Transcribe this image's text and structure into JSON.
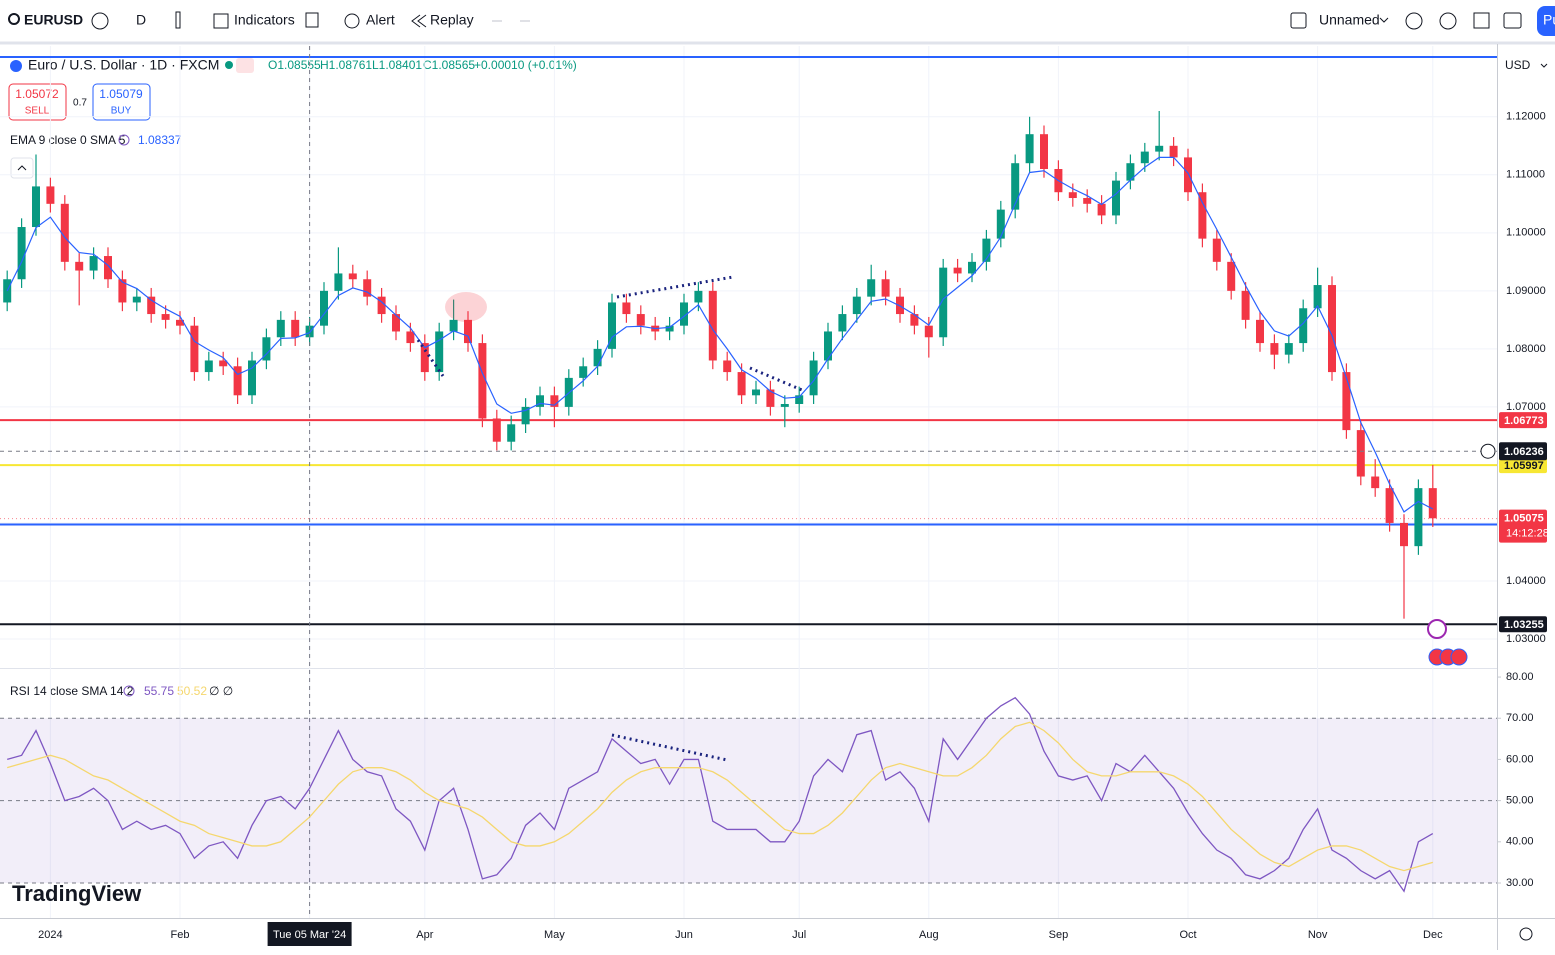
{
  "toolbar": {
    "symbol": "EURUSD",
    "interval": "D",
    "indicators": "Indicators",
    "alert": "Alert",
    "replay": "Replay",
    "layout": "Unnamed",
    "publish": "Pu"
  },
  "trading": {
    "sell_price": "1.05072",
    "sell": "SELL",
    "spread": "0.7",
    "buy_price": "1.05079",
    "buy": "BUY"
  },
  "logo": "TradingView",
  "chart_data": [
    {
      "type": "candlestick",
      "title": "Euro / U.S. Dollar · 1D · FXCM",
      "ohlc_legend": [
        "O1.08555",
        "H1.08761",
        "L1.08401",
        "C1.08565",
        "+0.00010 (+0.01%)"
      ],
      "currency": "USD",
      "categories": [
        null,
        null,
        null,
        "2024",
        null,
        null,
        null,
        null,
        null,
        null,
        null,
        null,
        "Feb",
        null,
        null,
        null,
        null,
        null,
        null,
        null,
        null,
        "Tue 05 Mar '24",
        null,
        null,
        null,
        null,
        null,
        null,
        null,
        "Apr",
        null,
        null,
        null,
        null,
        null,
        null,
        null,
        null,
        "May",
        null,
        null,
        null,
        null,
        null,
        null,
        null,
        null,
        "Jun",
        null,
        null,
        null,
        null,
        null,
        null,
        null,
        "Jul",
        null,
        null,
        null,
        null,
        null,
        null,
        null,
        null,
        "Aug",
        null,
        null,
        null,
        null,
        null,
        null,
        null,
        null,
        "Sep",
        null,
        null,
        null,
        null,
        null,
        null,
        null,
        null,
        "Oct",
        null,
        null,
        null,
        null,
        null,
        null,
        null,
        null,
        "Nov",
        null,
        null,
        null,
        null,
        null,
        null,
        null,
        "Dec"
      ],
      "crosshair_x": "Tue 05 Mar '24",
      "crosshair_y": 1.06236,
      "open": [
        1.088,
        1.092,
        1.101,
        1.108,
        1.105,
        1.095,
        1.0935,
        1.096,
        1.092,
        1.088,
        1.089,
        1.086,
        1.085,
        1.084,
        1.076,
        1.078,
        1.077,
        1.072,
        1.078,
        1.082,
        1.085,
        1.082,
        1.084,
        1.09,
        1.093,
        1.092,
        1.089,
        1.086,
        1.083,
        1.081,
        1.076,
        1.083,
        1.085,
        1.081,
        1.068,
        1.064,
        1.067,
        1.07,
        1.072,
        1.07,
        1.075,
        1.077,
        1.08,
        1.088,
        1.086,
        1.084,
        1.083,
        1.084,
        1.088,
        1.09,
        1.078,
        1.076,
        1.072,
        1.073,
        1.07,
        1.0705,
        1.072,
        1.078,
        1.083,
        1.086,
        1.089,
        1.092,
        1.089,
        1.086,
        1.084,
        1.082,
        1.094,
        1.093,
        1.095,
        1.099,
        1.104,
        1.112,
        1.117,
        1.111,
        1.107,
        1.106,
        1.105,
        1.103,
        1.109,
        1.112,
        1.114,
        1.115,
        1.113,
        1.107,
        1.099,
        1.095,
        1.09,
        1.085,
        1.081,
        1.079,
        1.081,
        1.087,
        1.091,
        1.076,
        1.066,
        1.058,
        1.056,
        1.05,
        1.046,
        1.056
      ],
      "high": [
        1.0935,
        1.1025,
        1.1135,
        1.1095,
        1.1065,
        1.0965,
        1.0975,
        1.0975,
        1.0935,
        1.0905,
        1.0905,
        1.0875,
        1.0865,
        1.0855,
        1.0795,
        1.0795,
        1.0785,
        1.0795,
        1.0835,
        1.0865,
        1.0865,
        1.0855,
        1.0915,
        1.0975,
        1.0945,
        1.0935,
        1.0905,
        1.0875,
        1.0845,
        1.0825,
        1.0845,
        1.0885,
        1.0865,
        1.0825,
        1.0695,
        1.0685,
        1.0715,
        1.0735,
        1.0735,
        1.0765,
        1.0785,
        1.0815,
        1.0895,
        1.0895,
        1.0875,
        1.0855,
        1.0855,
        1.0895,
        1.0915,
        1.0915,
        1.0795,
        1.0775,
        1.0745,
        1.0745,
        1.072,
        1.0735,
        1.0795,
        1.0845,
        1.0875,
        1.0905,
        1.0945,
        1.0935,
        1.0905,
        1.0875,
        1.0855,
        1.0955,
        1.0955,
        1.0965,
        1.1005,
        1.1055,
        1.1135,
        1.12,
        1.1185,
        1.1125,
        1.1085,
        1.1075,
        1.1065,
        1.1105,
        1.1135,
        1.1155,
        1.121,
        1.1165,
        1.1145,
        1.1085,
        1.1005,
        1.0965,
        1.0915,
        1.0865,
        1.0825,
        1.0825,
        1.0885,
        1.094,
        1.0925,
        1.0775,
        1.0675,
        1.061,
        1.0575,
        1.0515,
        1.0575,
        1.06
      ],
      "low": [
        1.0865,
        1.0905,
        1.0995,
        1.1035,
        1.0935,
        1.0875,
        1.092,
        1.0905,
        1.0865,
        1.0865,
        1.0845,
        1.0835,
        1.0825,
        1.0745,
        1.0745,
        1.0755,
        1.0705,
        1.0705,
        1.0765,
        1.0805,
        1.0805,
        1.0805,
        1.0825,
        1.0885,
        1.0905,
        1.0875,
        1.0845,
        1.0815,
        1.0795,
        1.0745,
        1.0745,
        1.0815,
        1.0795,
        1.0665,
        1.0625,
        1.0625,
        1.0655,
        1.0685,
        1.0665,
        1.0685,
        1.0735,
        1.0755,
        1.0785,
        1.0845,
        1.0825,
        1.0815,
        1.0815,
        1.0825,
        1.0865,
        1.0765,
        1.0745,
        1.0705,
        1.0705,
        1.0685,
        1.0665,
        1.069,
        1.0705,
        1.0765,
        1.0815,
        1.0845,
        1.0875,
        1.0875,
        1.0845,
        1.0825,
        1.0785,
        1.0805,
        1.0915,
        1.0915,
        1.0935,
        1.0975,
        1.1025,
        1.1105,
        1.1095,
        1.1055,
        1.1045,
        1.1035,
        1.1015,
        1.1015,
        1.1075,
        1.1105,
        1.1125,
        1.1115,
        1.1055,
        1.0975,
        1.0935,
        1.0885,
        1.0835,
        1.0795,
        1.0765,
        1.0775,
        1.0795,
        1.0855,
        1.0745,
        1.0645,
        1.0565,
        1.0545,
        1.0485,
        1.0335,
        1.0445,
        1.0493
      ],
      "close": [
        1.092,
        1.101,
        1.108,
        1.105,
        1.095,
        1.0935,
        1.096,
        1.092,
        1.088,
        1.089,
        1.086,
        1.085,
        1.084,
        1.076,
        1.078,
        1.077,
        1.072,
        1.078,
        1.082,
        1.085,
        1.082,
        1.084,
        1.09,
        1.093,
        1.092,
        1.089,
        1.086,
        1.083,
        1.081,
        1.076,
        1.083,
        1.085,
        1.081,
        1.068,
        1.064,
        1.067,
        1.07,
        1.072,
        1.07,
        1.075,
        1.077,
        1.08,
        1.088,
        1.086,
        1.084,
        1.083,
        1.084,
        1.088,
        1.09,
        1.078,
        1.076,
        1.072,
        1.073,
        1.07,
        1.0705,
        1.072,
        1.078,
        1.083,
        1.086,
        1.089,
        1.092,
        1.089,
        1.086,
        1.084,
        1.082,
        1.094,
        1.093,
        1.095,
        1.099,
        1.104,
        1.112,
        1.117,
        1.111,
        1.107,
        1.106,
        1.105,
        1.103,
        1.109,
        1.112,
        1.114,
        1.115,
        1.113,
        1.107,
        1.099,
        1.095,
        1.09,
        1.085,
        1.081,
        1.079,
        1.081,
        1.087,
        1.091,
        1.076,
        1.066,
        1.058,
        1.056,
        1.05,
        1.046,
        1.056,
        1.0508
      ],
      "up_color": "#089981",
      "down_color": "#f23645",
      "series": [
        {
          "name": "EMA 9 close 0 SMA 5",
          "legend_value": 1.08337,
          "color": "#2962ff",
          "values": [
            1.09,
            1.095,
            1.1009,
            1.1027,
            1.0992,
            1.0966,
            1.0963,
            1.0944,
            1.0915,
            1.0904,
            1.0884,
            1.0869,
            1.0856,
            1.0813,
            1.0798,
            1.0785,
            1.0756,
            1.0767,
            1.0791,
            1.0818,
            1.0819,
            1.0828,
            1.086,
            1.0892,
            1.0905,
            1.0898,
            1.0881,
            1.0858,
            1.0836,
            1.0802,
            1.0815,
            1.0831,
            1.0822,
            1.0758,
            1.0705,
            1.0689,
            1.0694,
            1.0706,
            1.0703,
            1.0724,
            1.0745,
            1.077,
            1.082,
            1.0838,
            1.0839,
            1.0835,
            1.0837,
            1.0856,
            1.0876,
            1.0833,
            1.08,
            1.0764,
            1.0749,
            1.0727,
            1.0715,
            1.0717,
            1.0745,
            1.0783,
            1.0818,
            1.085,
            1.0882,
            1.0886,
            1.0874,
            1.0859,
            1.0841,
            1.0886,
            1.0906,
            1.0926,
            1.0955,
            1.0993,
            1.105,
            1.1104,
            1.1107,
            1.109,
            1.1076,
            1.1064,
            1.1049,
            1.1067,
            1.1091,
            1.1113,
            1.113,
            1.113,
            1.1103,
            1.1052,
            1.1006,
            1.0958,
            1.0909,
            1.0864,
            1.0831,
            1.0822,
            1.0844,
            1.0874,
            1.0823,
            1.075,
            1.0673,
            1.0622,
            1.0567,
            1.0519,
            1.0537,
            1.0524
          ]
        }
      ],
      "levels": [
        {
          "value": 1.06773,
          "color": "#f23645"
        },
        {
          "value": 1.05997,
          "color": "#f7e733"
        },
        {
          "value": 1.04974,
          "color": "#2962ff"
        },
        {
          "value": 1.03255,
          "color": "#131722"
        }
      ],
      "unlabeled_levels": [
        {
          "value": 1.1303,
          "color": "#2962ff"
        }
      ],
      "last_price": 1.05075,
      "countdown": "14:12:28",
      "ylim": [
        1.025,
        1.1322
      ],
      "yticks": [
        {
          "value": 1.12,
          "label": "1.12000"
        },
        {
          "value": 1.11,
          "label": "1.11000"
        },
        {
          "value": 1.1,
          "label": "1.10000"
        },
        {
          "value": 1.09,
          "label": "1.09000"
        },
        {
          "value": 1.08,
          "label": "1.08000"
        },
        {
          "value": 1.07,
          "label": "1.07000"
        },
        {
          "value": 1.06,
          "label": "1.06000"
        },
        {
          "value": 1.05,
          "label": "1.05000"
        },
        {
          "value": 1.04,
          "label": "1.04000"
        },
        {
          "value": 1.03,
          "label": "1.03000"
        }
      ],
      "grid": true
    },
    {
      "type": "line",
      "title": "RSI 14 close SMA 14 2",
      "extra_legend": "∅ ∅",
      "series": [
        {
          "legend_value": 55.75,
          "color": "#7e57c2",
          "values": [
            60,
            61,
            67,
            59,
            50,
            51,
            53,
            50,
            43,
            45,
            43,
            44,
            42,
            36,
            39,
            40,
            36,
            44,
            50,
            51,
            48,
            53,
            60,
            67,
            60,
            57,
            56,
            48,
            45,
            38,
            50,
            53,
            43,
            31,
            32,
            36,
            44,
            47,
            43,
            53,
            55,
            57,
            65,
            62,
            59,
            60,
            54,
            60,
            60,
            45,
            43,
            43,
            43,
            40,
            40,
            45,
            56,
            60,
            57,
            66,
            67,
            55,
            57,
            53,
            45,
            65,
            60,
            65,
            70,
            73,
            75,
            71,
            62,
            56,
            55,
            56,
            50,
            59,
            57,
            61,
            57,
            53,
            47,
            42,
            38,
            36,
            32,
            31,
            33,
            36,
            43,
            48,
            38,
            36,
            33,
            31,
            33,
            28,
            40,
            42
          ]
        },
        {
          "legend_value": 50.52,
          "color": "#f5d76e",
          "values": [
            58,
            59,
            60,
            61,
            60,
            58,
            56,
            55,
            53,
            51,
            49,
            47,
            45,
            44,
            42,
            41,
            40,
            39,
            39,
            40,
            43,
            46,
            50,
            54,
            57,
            58,
            58,
            57,
            55,
            52,
            50,
            49,
            48,
            46,
            43,
            40,
            39,
            39,
            40,
            42,
            45,
            48,
            52,
            55,
            57,
            58,
            58,
            58,
            58,
            57,
            55,
            52,
            49,
            46,
            43,
            42,
            42,
            44,
            47,
            51,
            55,
            58,
            59,
            58,
            57,
            56,
            56,
            58,
            61,
            65,
            68,
            69,
            67,
            64,
            60,
            57,
            56,
            56,
            57,
            57,
            57,
            56,
            54,
            51,
            47,
            43,
            40,
            37,
            35,
            34,
            36,
            38,
            39,
            39,
            38,
            36,
            34,
            33,
            34,
            35
          ]
        }
      ],
      "band": [
        30,
        70
      ],
      "band_color": "#7e57c2",
      "dashed_levels": [
        70,
        50,
        30
      ],
      "ylim": [
        21.5,
        82.2
      ],
      "yticks": [
        {
          "value": 80,
          "label": "80.00"
        },
        {
          "value": 70,
          "label": "70.00"
        },
        {
          "value": 60,
          "label": "60.00"
        },
        {
          "value": 50,
          "label": "50.00"
        },
        {
          "value": 40,
          "label": "40.00"
        },
        {
          "value": 30,
          "label": "30.00"
        }
      ]
    }
  ]
}
